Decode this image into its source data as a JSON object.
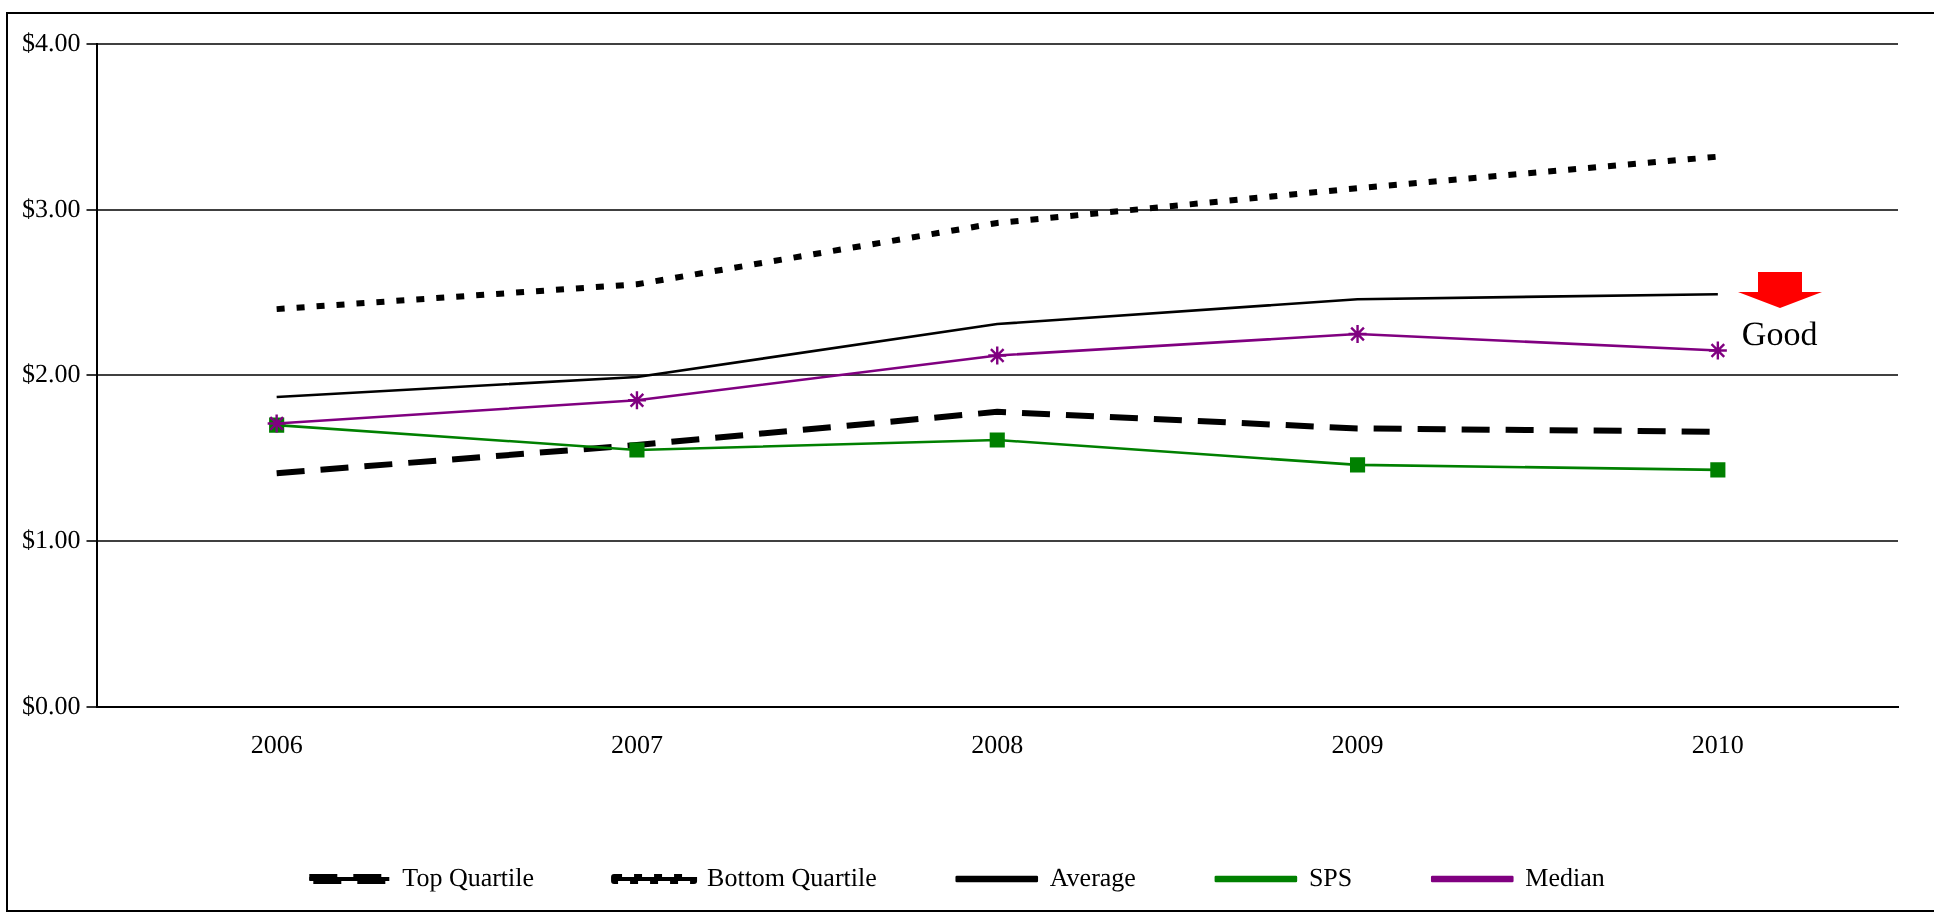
{
  "chart_data": {
    "type": "line",
    "categories": [
      "2006",
      "2007",
      "2008",
      "2009",
      "2010"
    ],
    "series": [
      {
        "name": "Top Quartile",
        "color": "#000000",
        "line_style": "dashed",
        "marker": "none",
        "values": [
          1.41,
          1.58,
          1.78,
          1.68,
          1.66
        ]
      },
      {
        "name": "Bottom Quartile",
        "color": "#000000",
        "line_style": "dotted",
        "marker": "none",
        "values": [
          2.4,
          2.55,
          2.92,
          3.13,
          3.32
        ]
      },
      {
        "name": "Average",
        "color": "#000000",
        "line_style": "solid",
        "marker": "none",
        "values": [
          1.87,
          1.99,
          2.31,
          2.46,
          2.49
        ]
      },
      {
        "name": "SPS",
        "color": "#008000",
        "line_style": "solid",
        "marker": "square",
        "values": [
          1.7,
          1.55,
          1.61,
          1.46,
          1.43
        ]
      },
      {
        "name": "Median",
        "color": "#800080",
        "line_style": "solid",
        "marker": "cross",
        "values": [
          1.71,
          1.85,
          2.12,
          2.25,
          2.15
        ]
      }
    ],
    "ylim": [
      0,
      4
    ],
    "yticks": [
      {
        "value": 0,
        "label": "$0.00"
      },
      {
        "value": 1,
        "label": "$1.00"
      },
      {
        "value": 2,
        "label": "$2.00"
      },
      {
        "value": 3,
        "label": "$3.00"
      },
      {
        "value": 4,
        "label": "$4.00"
      }
    ],
    "grid": "y",
    "legend": "bottom",
    "annotations": [
      "Good"
    ]
  }
}
